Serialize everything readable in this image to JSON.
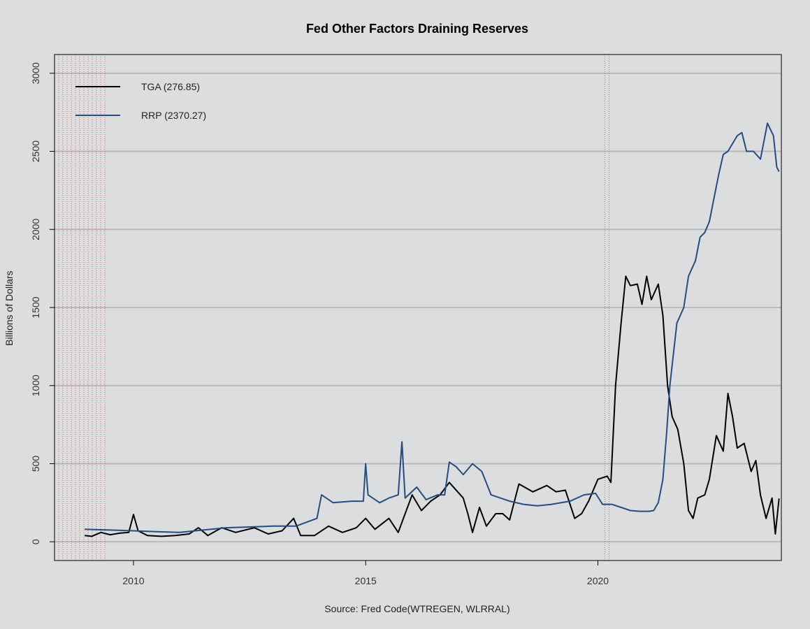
{
  "chart_data": {
    "type": "line",
    "title": "Fed Other Factors Draining Reserves",
    "xlabel": "Source: Fred Code(WTREGEN, WLRRAL)",
    "ylabel": "Billions of Dollars",
    "xlim": [
      2008.3,
      2023.95
    ],
    "ylim": [
      -120,
      3120
    ],
    "x_ticks": [
      2010,
      2015,
      2020
    ],
    "y_ticks": [
      0,
      500,
      1000,
      1500,
      2000,
      2500,
      3000
    ],
    "grid": "horizontal",
    "legend_position": "top-left",
    "recession_shading": [
      {
        "start": 2008.3,
        "end": 2009.4,
        "style": "dotted red vertical lines"
      },
      {
        "start": 2020.15,
        "end": 2020.3,
        "style": "dotted red vertical lines"
      }
    ],
    "series": [
      {
        "name": "TGA (276.85)",
        "color": "#000000",
        "points": [
          [
            2008.95,
            40
          ],
          [
            2009.1,
            35
          ],
          [
            2009.3,
            60
          ],
          [
            2009.5,
            45
          ],
          [
            2009.7,
            55
          ],
          [
            2009.9,
            60
          ],
          [
            2010.0,
            175
          ],
          [
            2010.1,
            70
          ],
          [
            2010.3,
            40
          ],
          [
            2010.6,
            35
          ],
          [
            2010.9,
            40
          ],
          [
            2011.2,
            50
          ],
          [
            2011.4,
            90
          ],
          [
            2011.6,
            40
          ],
          [
            2011.9,
            90
          ],
          [
            2012.2,
            60
          ],
          [
            2012.6,
            90
          ],
          [
            2012.9,
            50
          ],
          [
            2013.2,
            70
          ],
          [
            2013.45,
            150
          ],
          [
            2013.6,
            40
          ],
          [
            2013.9,
            40
          ],
          [
            2014.2,
            100
          ],
          [
            2014.5,
            60
          ],
          [
            2014.8,
            90
          ],
          [
            2015.0,
            150
          ],
          [
            2015.2,
            80
          ],
          [
            2015.5,
            150
          ],
          [
            2015.7,
            60
          ],
          [
            2015.85,
            180
          ],
          [
            2016.0,
            300
          ],
          [
            2016.2,
            200
          ],
          [
            2016.4,
            260
          ],
          [
            2016.6,
            300
          ],
          [
            2016.8,
            380
          ],
          [
            2016.95,
            330
          ],
          [
            2017.1,
            280
          ],
          [
            2017.2,
            180
          ],
          [
            2017.3,
            60
          ],
          [
            2017.45,
            220
          ],
          [
            2017.6,
            100
          ],
          [
            2017.8,
            180
          ],
          [
            2017.95,
            180
          ],
          [
            2018.1,
            140
          ],
          [
            2018.3,
            370
          ],
          [
            2018.6,
            320
          ],
          [
            2018.9,
            360
          ],
          [
            2019.1,
            320
          ],
          [
            2019.3,
            330
          ],
          [
            2019.5,
            150
          ],
          [
            2019.65,
            180
          ],
          [
            2019.8,
            260
          ],
          [
            2020.0,
            400
          ],
          [
            2020.2,
            420
          ],
          [
            2020.28,
            380
          ],
          [
            2020.38,
            1000
          ],
          [
            2020.5,
            1400
          ],
          [
            2020.6,
            1700
          ],
          [
            2020.7,
            1640
          ],
          [
            2020.85,
            1650
          ],
          [
            2020.95,
            1520
          ],
          [
            2021.05,
            1700
          ],
          [
            2021.15,
            1550
          ],
          [
            2021.3,
            1650
          ],
          [
            2021.4,
            1450
          ],
          [
            2021.5,
            1000
          ],
          [
            2021.6,
            800
          ],
          [
            2021.72,
            720
          ],
          [
            2021.85,
            500
          ],
          [
            2021.95,
            200
          ],
          [
            2022.05,
            150
          ],
          [
            2022.15,
            280
          ],
          [
            2022.3,
            300
          ],
          [
            2022.4,
            400
          ],
          [
            2022.55,
            680
          ],
          [
            2022.7,
            580
          ],
          [
            2022.8,
            950
          ],
          [
            2022.9,
            800
          ],
          [
            2023.0,
            600
          ],
          [
            2023.15,
            630
          ],
          [
            2023.3,
            450
          ],
          [
            2023.4,
            520
          ],
          [
            2023.5,
            300
          ],
          [
            2023.62,
            150
          ],
          [
            2023.75,
            280
          ],
          [
            2023.82,
            50
          ],
          [
            2023.9,
            277
          ]
        ]
      },
      {
        "name": "RRP (2370.27)",
        "color": "#264c80",
        "points": [
          [
            2008.95,
            80
          ],
          [
            2009.5,
            75
          ],
          [
            2010.0,
            70
          ],
          [
            2010.5,
            65
          ],
          [
            2011.0,
            60
          ],
          [
            2011.5,
            75
          ],
          [
            2012.0,
            90
          ],
          [
            2012.5,
            95
          ],
          [
            2013.0,
            100
          ],
          [
            2013.5,
            100
          ],
          [
            2013.95,
            150
          ],
          [
            2014.05,
            300
          ],
          [
            2014.3,
            250
          ],
          [
            2014.7,
            260
          ],
          [
            2014.95,
            260
          ],
          [
            2015.0,
            500
          ],
          [
            2015.05,
            300
          ],
          [
            2015.3,
            250
          ],
          [
            2015.5,
            280
          ],
          [
            2015.7,
            300
          ],
          [
            2015.78,
            640
          ],
          [
            2015.85,
            280
          ],
          [
            2016.1,
            350
          ],
          [
            2016.3,
            270
          ],
          [
            2016.55,
            300
          ],
          [
            2016.7,
            300
          ],
          [
            2016.8,
            510
          ],
          [
            2016.95,
            480
          ],
          [
            2017.1,
            430
          ],
          [
            2017.3,
            500
          ],
          [
            2017.5,
            450
          ],
          [
            2017.7,
            300
          ],
          [
            2017.9,
            280
          ],
          [
            2018.1,
            260
          ],
          [
            2018.4,
            240
          ],
          [
            2018.7,
            230
          ],
          [
            2019.0,
            240
          ],
          [
            2019.4,
            260
          ],
          [
            2019.7,
            300
          ],
          [
            2019.95,
            310
          ],
          [
            2020.1,
            240
          ],
          [
            2020.3,
            240
          ],
          [
            2020.5,
            220
          ],
          [
            2020.7,
            200
          ],
          [
            2020.9,
            195
          ],
          [
            2021.1,
            195
          ],
          [
            2021.2,
            200
          ],
          [
            2021.3,
            250
          ],
          [
            2021.4,
            400
          ],
          [
            2021.48,
            700
          ],
          [
            2021.55,
            1000
          ],
          [
            2021.7,
            1400
          ],
          [
            2021.85,
            1500
          ],
          [
            2021.95,
            1700
          ],
          [
            2022.1,
            1800
          ],
          [
            2022.2,
            1950
          ],
          [
            2022.3,
            1980
          ],
          [
            2022.4,
            2050
          ],
          [
            2022.5,
            2200
          ],
          [
            2022.6,
            2350
          ],
          [
            2022.7,
            2480
          ],
          [
            2022.8,
            2500
          ],
          [
            2022.9,
            2550
          ],
          [
            2023.0,
            2600
          ],
          [
            2023.1,
            2620
          ],
          [
            2023.2,
            2500
          ],
          [
            2023.35,
            2500
          ],
          [
            2023.5,
            2450
          ],
          [
            2023.65,
            2680
          ],
          [
            2023.78,
            2600
          ],
          [
            2023.85,
            2400
          ],
          [
            2023.9,
            2370
          ]
        ]
      }
    ]
  }
}
